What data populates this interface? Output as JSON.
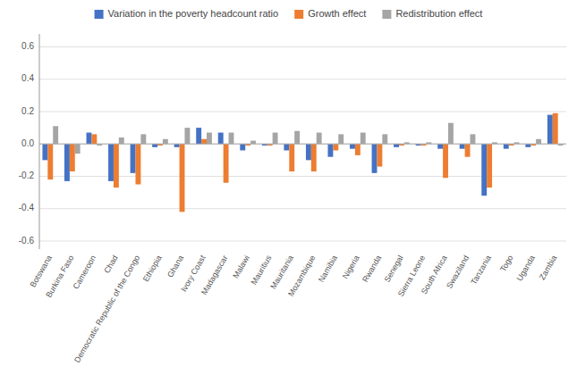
{
  "chart_data": {
    "type": "bar",
    "categories": [
      "Botswana",
      "Burkina Faso",
      "Cameroon",
      "Chad",
      "Democratic Republic of the Congo",
      "Ethiopia",
      "Ghana",
      "Ivory Coast",
      "Madagascar",
      "Malawi",
      "Mauritius",
      "Mauritania",
      "Mozambique",
      "Namibia",
      "Nigeria",
      "Rwanda",
      "Senegal",
      "Sierra Leone",
      "South Africa",
      "Swaziland",
      "Tanzania",
      "Togo",
      "Uganda",
      "Zambia"
    ],
    "series": [
      {
        "name": "Variation in the poverty headcount ratio",
        "color": "#4472c4",
        "values": [
          -0.1,
          -0.23,
          0.07,
          -0.23,
          -0.18,
          -0.02,
          -0.02,
          0.1,
          0.07,
          -0.04,
          -0.01,
          -0.04,
          -0.1,
          -0.08,
          -0.03,
          -0.18,
          -0.02,
          -0.01,
          -0.03,
          -0.03,
          -0.32,
          -0.03,
          -0.02,
          0.18
        ]
      },
      {
        "name": "Growth effect",
        "color": "#ed7d31",
        "values": [
          -0.22,
          -0.17,
          0.06,
          -0.27,
          -0.25,
          -0.01,
          -0.42,
          0.03,
          -0.24,
          -0.01,
          -0.01,
          -0.17,
          -0.17,
          -0.04,
          -0.07,
          -0.14,
          -0.01,
          -0.01,
          -0.21,
          -0.08,
          -0.27,
          -0.01,
          -0.01,
          0.19
        ]
      },
      {
        "name": "Redistribution effect",
        "color": "#a5a5a5",
        "values": [
          0.11,
          -0.06,
          -0.01,
          0.04,
          0.06,
          0.03,
          0.1,
          0.07,
          0.07,
          0.02,
          0.07,
          0.08,
          0.07,
          0.06,
          0.07,
          0.06,
          0.01,
          0.01,
          0.13,
          0.06,
          0.01,
          0.01,
          0.03,
          -0.01
        ]
      }
    ],
    "ylim": [
      -0.65,
      0.68
    ],
    "yticks": [
      -0.6,
      -0.4,
      -0.2,
      {
        "value": 0,
        "label": "0.0"
      },
      0.2,
      0.4,
      0.6
    ],
    "grid": true,
    "legend": "upper center"
  }
}
